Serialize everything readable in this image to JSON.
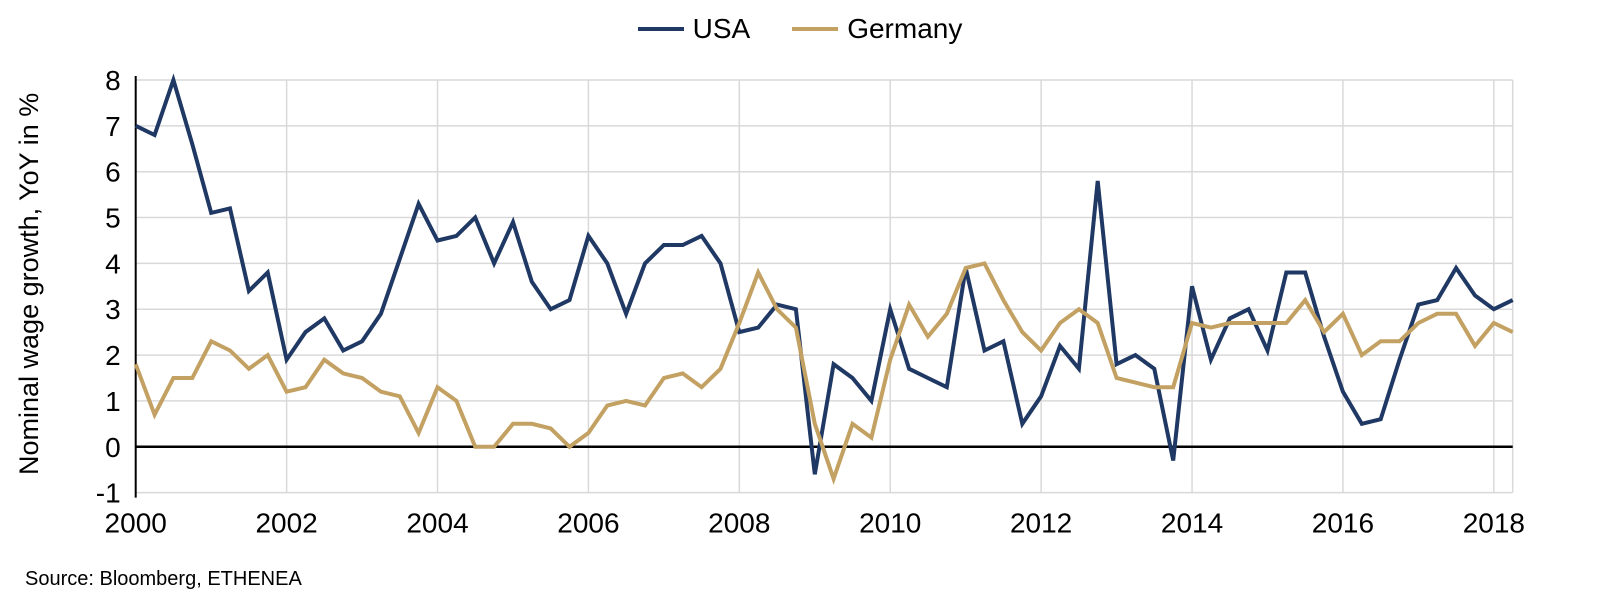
{
  "footer": {
    "source": "Source: Bloomberg, ETHENEA"
  },
  "chart_data": {
    "type": "line",
    "title": "",
    "xlabel": "",
    "ylabel": "Nominal wage growth, YoY in %",
    "grid": true,
    "legend_position": "top-center",
    "background": "#ffffff",
    "grid_color": "#d9d9d9",
    "axis_color": "#000000",
    "xlim": [
      2000,
      2018.25
    ],
    "ylim": [
      -1,
      8
    ],
    "x_ticks": [
      2000,
      2002,
      2004,
      2006,
      2008,
      2010,
      2012,
      2014,
      2016,
      2018
    ],
    "y_ticks": [
      8,
      7,
      6,
      5,
      4,
      3,
      2,
      1,
      0,
      -1
    ],
    "x_start": 2000,
    "x_step": 0.25,
    "x_unit": "quarterly",
    "series": [
      {
        "name": "USA",
        "color": "#1F3864",
        "values": [
          7.0,
          6.8,
          8.0,
          6.6,
          5.1,
          5.2,
          3.4,
          3.8,
          1.9,
          2.5,
          2.8,
          2.1,
          2.3,
          2.9,
          4.1,
          5.3,
          4.5,
          4.6,
          5.0,
          4.0,
          4.9,
          3.6,
          3.0,
          3.2,
          4.6,
          4.0,
          2.9,
          4.0,
          4.4,
          4.4,
          4.6,
          4.0,
          2.5,
          2.6,
          3.1,
          3.0,
          -0.6,
          1.8,
          1.5,
          1.0,
          3.0,
          1.7,
          1.5,
          1.3,
          3.9,
          2.1,
          2.3,
          0.5,
          1.1,
          2.2,
          1.7,
          5.8,
          1.8,
          2.0,
          1.7,
          -0.3,
          3.5,
          1.9,
          2.8,
          3.0,
          2.1,
          3.8,
          3.8,
          2.4,
          1.2,
          0.5,
          0.6,
          1.9,
          3.1,
          3.2,
          3.9,
          3.3,
          3.0,
          3.2
        ]
      },
      {
        "name": "Germany",
        "color": "#C3A163",
        "values": [
          1.8,
          0.7,
          1.5,
          1.5,
          2.3,
          2.1,
          1.7,
          2.0,
          1.2,
          1.3,
          1.9,
          1.6,
          1.5,
          1.2,
          1.1,
          0.3,
          1.3,
          1.0,
          0.0,
          0.0,
          0.5,
          0.5,
          0.4,
          0.0,
          0.3,
          0.9,
          1.0,
          0.9,
          1.5,
          1.6,
          1.3,
          1.7,
          2.7,
          3.8,
          3.0,
          2.6,
          0.5,
          -0.7,
          0.5,
          0.2,
          1.9,
          3.1,
          2.4,
          2.9,
          3.9,
          4.0,
          3.2,
          2.5,
          2.1,
          2.7,
          3.0,
          2.7,
          1.5,
          1.4,
          1.3,
          1.3,
          2.7,
          2.6,
          2.7,
          2.7,
          2.7,
          2.7,
          3.2,
          2.5,
          2.9,
          2.0,
          2.3,
          2.3,
          2.7,
          2.9,
          2.9,
          2.2,
          2.7,
          2.5
        ]
      }
    ]
  }
}
